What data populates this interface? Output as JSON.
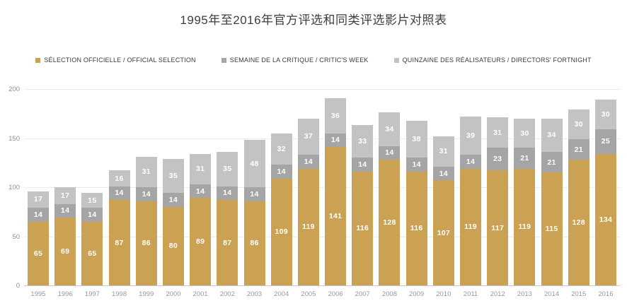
{
  "title": "1995年至2016年官方评选和同类评选影片对照表",
  "legend": [
    {
      "label": "SÉLECTION OFFICIELLE / OFFICIAL SELECTION",
      "color": "#CBA154"
    },
    {
      "label": "SEMAINE DE LA CRITIQUE / CRITIC'S WEEK",
      "color": "#A5A5A5"
    },
    {
      "label": "QUINZAINE DES RÉALISATEURS / DIRECTORS' FORTNIGHT",
      "color": "#C3C3C4"
    }
  ],
  "colors": {
    "official": "#CBA154",
    "critics_week": "#A5A5A5",
    "directors_fortnight": "#C3C3C4",
    "value_label": "#ffffff",
    "gridline": "#ececec",
    "axis_line": "#c9c9c9",
    "tick_text": "#8f8f8f"
  },
  "chart_data": {
    "type": "bar",
    "stacked": true,
    "title": "1995年至2016年官方评选和同类评选影片对照表",
    "categories": [
      "1995",
      "1996",
      "1997",
      "1998",
      "1999",
      "2000",
      "2001",
      "2002",
      "2003",
      "2004",
      "2005",
      "2006",
      "2007",
      "2008",
      "2009",
      "2010",
      "2011",
      "2012",
      "2013",
      "2014",
      "2015",
      "2016"
    ],
    "series": [
      {
        "name": "SÉLECTION OFFICIELLE / OFFICIAL SELECTION",
        "color": "#CBA154",
        "values": [
          65,
          69,
          65,
          87,
          86,
          80,
          89,
          87,
          86,
          109,
          119,
          141,
          116,
          128,
          116,
          107,
          119,
          117,
          119,
          115,
          128,
          134
        ]
      },
      {
        "name": "SEMAINE DE LA CRITIQUE / CRITIC'S WEEK",
        "color": "#A5A5A5",
        "values": [
          14,
          14,
          14,
          14,
          14,
          14,
          14,
          14,
          14,
          14,
          14,
          14,
          14,
          14,
          14,
          14,
          14,
          23,
          21,
          21,
          21,
          25
        ]
      },
      {
        "name": "QUINZAINE DES RÉALISATEURS / DIRECTORS' FORTNIGHT",
        "color": "#C3C3C4",
        "values": [
          17,
          17,
          15,
          16,
          31,
          35,
          31,
          35,
          48,
          32,
          37,
          36,
          33,
          34,
          38,
          31,
          39,
          31,
          30,
          34,
          30,
          30
        ]
      }
    ],
    "xlabel": "",
    "ylabel": "",
    "ylim": [
      0,
      200
    ],
    "yticks": [
      0,
      50,
      100,
      150,
      200
    ],
    "grid": true,
    "legend_position": "top",
    "value_labels": "inside"
  }
}
